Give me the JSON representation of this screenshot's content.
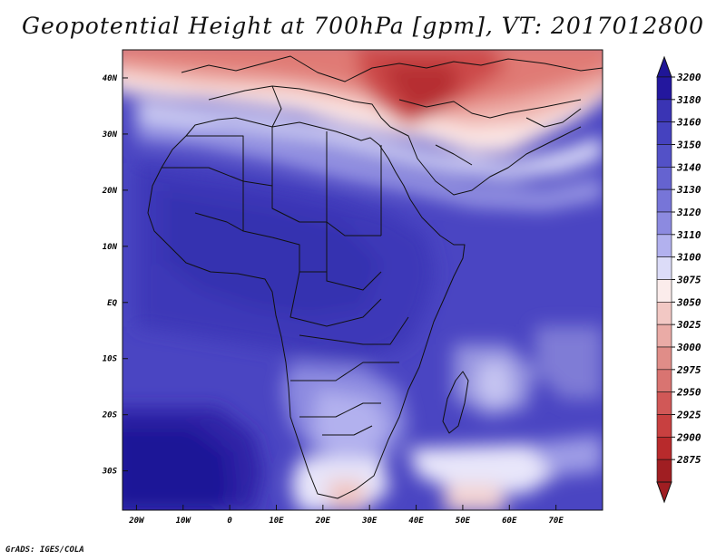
{
  "title": "Geopotential Height at 700hPa [gpm], VT: 2017012800",
  "credit": "GrADS: IGES/COLA",
  "map": {
    "variable": "Geopotential Height",
    "level": "700hPa",
    "units": "gpm",
    "valid_time": "2017012800",
    "lon_range": [
      -23,
      80
    ],
    "lat_range": [
      -37,
      45
    ],
    "lon_ticks": [
      {
        "value": -20,
        "label": "20W"
      },
      {
        "value": -10,
        "label": "10W"
      },
      {
        "value": 0,
        "label": "0"
      },
      {
        "value": 10,
        "label": "10E"
      },
      {
        "value": 20,
        "label": "20E"
      },
      {
        "value": 30,
        "label": "30E"
      },
      {
        "value": 40,
        "label": "40E"
      },
      {
        "value": 50,
        "label": "50E"
      },
      {
        "value": 60,
        "label": "60E"
      },
      {
        "value": 70,
        "label": "70E"
      }
    ],
    "lat_ticks": [
      {
        "value": 40,
        "label": "40N"
      },
      {
        "value": 30,
        "label": "30N"
      },
      {
        "value": 20,
        "label": "20N"
      },
      {
        "value": 10,
        "label": "10N"
      },
      {
        "value": 0,
        "label": "EQ"
      },
      {
        "value": -10,
        "label": "10S"
      },
      {
        "value": -20,
        "label": "20S"
      },
      {
        "value": -30,
        "label": "30S"
      }
    ]
  },
  "colorbar": {
    "labels": [
      "3200",
      "3180",
      "3160",
      "3150",
      "3140",
      "3130",
      "3120",
      "3110",
      "3100",
      "3075",
      "3050",
      "3025",
      "3000",
      "2975",
      "2950",
      "2925",
      "2900",
      "2875"
    ],
    "colors": [
      "#23179e",
      "#3a34b4",
      "#4542bf",
      "#5351c7",
      "#6563d0",
      "#7775d8",
      "#8c8ae0",
      "#b2b1ee",
      "#dcdcf8",
      "#fbeceb",
      "#f2c8c4",
      "#eaaba6",
      "#e08d88",
      "#d97471",
      "#d15857",
      "#c84040",
      "#b82a2c",
      "#a01e22"
    ],
    "top_arrow_color": "#1f1597",
    "bottom_arrow_color": "#a01e22"
  }
}
